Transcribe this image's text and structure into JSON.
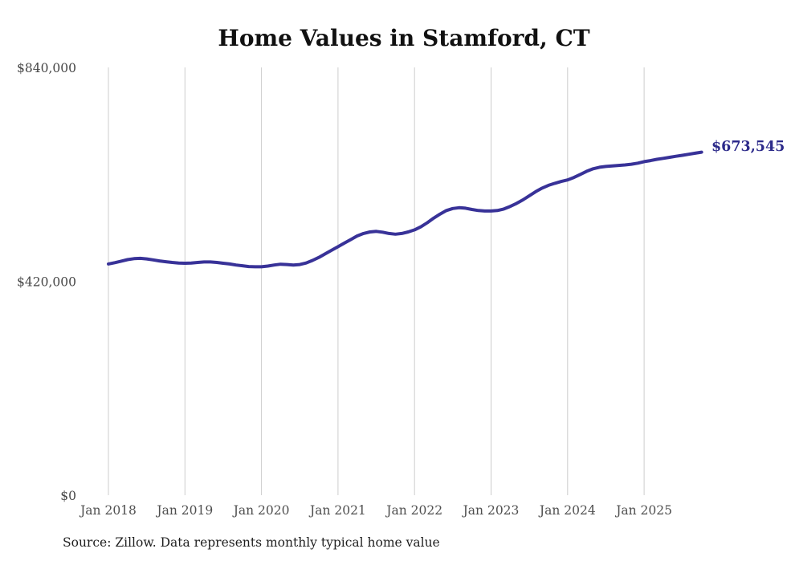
{
  "chart": {
    "title": "Home Values in Stamford, CT",
    "latest_value_label": "$673,545",
    "source_note": "Source: Zillow. Data represents monthly typical home value",
    "colors": {
      "line": "#383298",
      "latest_label": "#2c2a8a",
      "gridline": "#cdcdcd",
      "y_tick_text": "#454545",
      "x_tick_text": "#4f4f4f",
      "title_text": "#111111",
      "source_text": "#1f1f1f"
    }
  },
  "chart_data": {
    "type": "line",
    "title": "Home Values in Stamford, CT",
    "xlabel": "",
    "ylabel": "",
    "ylim": [
      0,
      840000
    ],
    "grid": "vertical-yearly",
    "legend": "none",
    "x_unit": "month",
    "x_start": "Jan 2018",
    "x_tick_labels": [
      "Jan 2018",
      "Jan 2019",
      "Jan 2020",
      "Jan 2021",
      "Jan 2022",
      "Jan 2023",
      "Jan 2024",
      "Jan 2025"
    ],
    "y_ticks": [
      {
        "label": "$0",
        "value": 0
      },
      {
        "label": "$420,000",
        "value": 420000
      },
      {
        "label": "$840,000",
        "value": 840000
      }
    ],
    "end_label": "$673,545",
    "source": "Source: Zillow. Data represents monthly typical home value",
    "series": [
      {
        "name": "Typical home value (monthly, from Jan 2018)",
        "values": [
          454000,
          456500,
          459500,
          462500,
          464500,
          465000,
          464000,
          462000,
          460000,
          458500,
          457000,
          456000,
          455500,
          456000,
          457000,
          458000,
          458000,
          457000,
          455500,
          454000,
          452000,
          450500,
          449000,
          448500,
          448500,
          450000,
          452000,
          453500,
          453000,
          452000,
          453000,
          456000,
          461000,
          467000,
          474000,
          481000,
          488000,
          495000,
          502000,
          509000,
          514000,
          517000,
          518000,
          516500,
          514000,
          512500,
          514000,
          517000,
          521000,
          527000,
          535000,
          544000,
          552000,
          559000,
          563000,
          564500,
          563500,
          561000,
          559000,
          558000,
          558000,
          559000,
          562000,
          567000,
          573000,
          580000,
          588000,
          596000,
          603000,
          608500,
          612500,
          616000,
          619000,
          624000,
          630000,
          636000,
          641000,
          644000,
          645500,
          646500,
          647500,
          648500,
          650000,
          652000,
          655000,
          657000,
          659500,
          661500,
          663500,
          665500,
          667500,
          669500,
          671500,
          673545
        ]
      }
    ]
  }
}
